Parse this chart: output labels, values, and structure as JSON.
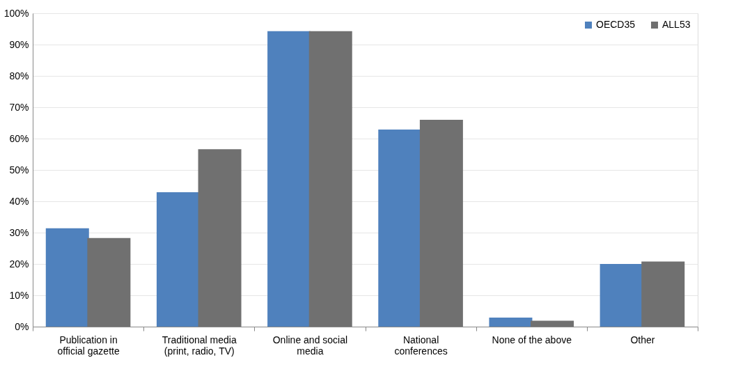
{
  "chart_data": {
    "type": "bar",
    "categories": [
      "Publication in\nofficial gazette",
      "Traditional media\n(print, radio, TV)",
      "Online and social\nmedia",
      "National\nconferences",
      "None of the above",
      "Other"
    ],
    "series": [
      {
        "name": "OECD35",
        "color": "#4f81bd",
        "values": [
          31.4,
          42.9,
          94.3,
          62.9,
          2.9,
          20.0
        ]
      },
      {
        "name": "ALL53",
        "color": "#707070",
        "values": [
          28.3,
          56.6,
          94.3,
          66.0,
          1.9,
          20.8
        ]
      }
    ],
    "ylim": [
      0,
      100
    ],
    "yticks": [
      {
        "value": 0,
        "label": "0%"
      },
      {
        "value": 10,
        "label": "10%"
      },
      {
        "value": 20,
        "label": "20%"
      },
      {
        "value": 30,
        "label": "30%"
      },
      {
        "value": 40,
        "label": "40%"
      },
      {
        "value": 50,
        "label": "50%"
      },
      {
        "value": 60,
        "label": "60%"
      },
      {
        "value": 70,
        "label": "70%"
      },
      {
        "value": 80,
        "label": "80%"
      },
      {
        "value": 90,
        "label": "90%"
      },
      {
        "value": 100,
        "label": "100%"
      }
    ],
    "grid": "y",
    "legend": "top right"
  }
}
